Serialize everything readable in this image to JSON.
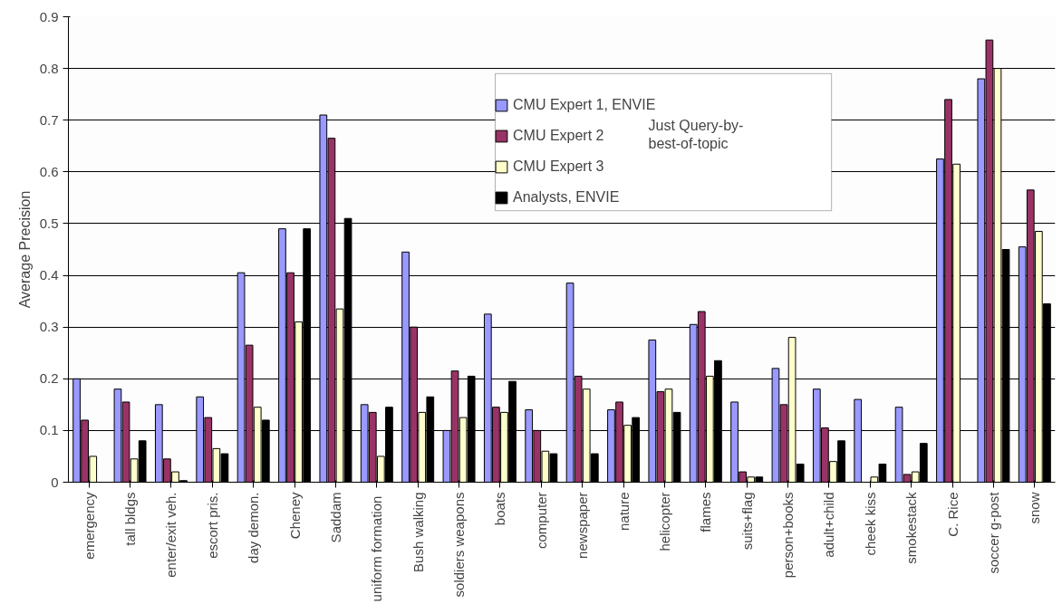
{
  "chart_data": {
    "type": "bar",
    "ylabel": "Average Precision",
    "categories": [
      "emergency",
      "tall bldgs",
      "enter/exit veh.",
      "escort pris.",
      "day demon.",
      "Cheney",
      "Saddam",
      "uniform  formation",
      "Bush walking",
      "soldiers weapons",
      "boats",
      "computer",
      "newspaper",
      "nature",
      "helicopter",
      "flames",
      "suits+flag",
      "person+books",
      "adult+child",
      "cheek kiss",
      "smokestack",
      "C. Rice",
      "soccer g-post",
      "snow"
    ],
    "series": [
      {
        "name": "CMU Expert 1, ENVIE",
        "color": "#9999ff",
        "values": [
          0.2,
          0.18,
          0.15,
          0.165,
          0.405,
          0.49,
          0.71,
          0.15,
          0.445,
          0.1,
          0.325,
          0.14,
          0.385,
          0.14,
          0.275,
          0.305,
          0.155,
          0.22,
          0.18,
          0.16,
          0.145,
          0.625,
          0.78,
          0.455
        ]
      },
      {
        "name": "CMU Expert 2",
        "color": "#993366",
        "values": [
          0.12,
          0.155,
          0.045,
          0.125,
          0.265,
          0.405,
          0.665,
          0.135,
          0.3,
          0.215,
          0.145,
          0.1,
          0.205,
          0.155,
          0.175,
          0.33,
          0.02,
          0.15,
          0.105,
          null,
          0.015,
          0.74,
          0.855,
          0.565
        ]
      },
      {
        "name": "CMU Expert 3",
        "color": "#ffffcc",
        "values": [
          0.05,
          0.045,
          0.02,
          0.065,
          0.145,
          0.31,
          0.335,
          0.05,
          0.135,
          0.125,
          0.135,
          0.06,
          0.18,
          0.11,
          0.18,
          0.205,
          0.01,
          0.28,
          0.04,
          0.01,
          0.02,
          0.615,
          0.8,
          0.485
        ]
      },
      {
        "name": "Analysts, ENVIE",
        "color": "#000000",
        "values": [
          0,
          0.08,
          0.003,
          0.055,
          0.12,
          0.49,
          0.51,
          0.145,
          0.165,
          0.205,
          0.195,
          0.055,
          0.055,
          0.125,
          0.135,
          0.235,
          0.01,
          0.035,
          0.08,
          0.035,
          0.075,
          0,
          0.45,
          0.345
        ]
      }
    ],
    "annotations": [
      "Just Query-by-\nbest-of-topic"
    ],
    "ylim": [
      0,
      0.9
    ],
    "yticks": [
      0,
      0.1,
      0.2,
      0.3,
      0.4,
      0.5,
      0.6,
      0.7,
      0.8,
      0.9
    ],
    "grid": "y",
    "legend": "top right"
  }
}
